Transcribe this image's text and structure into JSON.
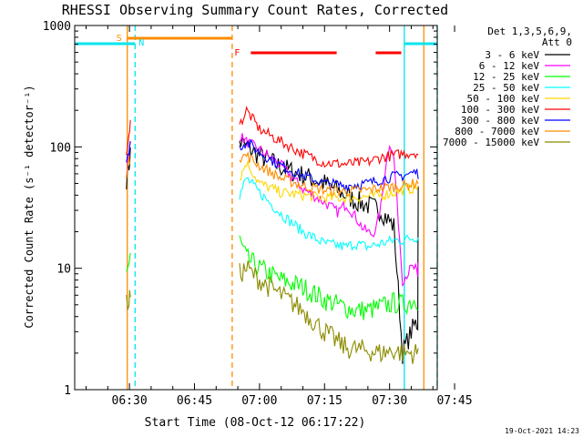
{
  "chart_data": {
    "type": "line",
    "title": "RHESSI Observing Summary Count Rates, Corrected",
    "xlabel": "Start Time (08-Oct-12 06:17:22)",
    "ylabel": "Corrected Count Rate (s⁻¹ detector⁻¹)",
    "x_ticks": [
      "06:30",
      "06:45",
      "07:00",
      "07:15",
      "07:30",
      "07:45"
    ],
    "x_tick_minutes": [
      30,
      45,
      60,
      75,
      90,
      105
    ],
    "xlim_minutes_after_0600": [
      17.37,
      101.0
    ],
    "y_scale": "log",
    "ylim": [
      1,
      1000
    ],
    "y_ticks": [
      "1",
      "10",
      "100",
      "1000"
    ],
    "y_tick_values": [
      1,
      10,
      100,
      1000
    ],
    "legend_title": [
      "Det 1,3,5,6,9,",
      "Att 0"
    ],
    "legend_position": "right",
    "timestamp": "19-Oct-2021 14:23",
    "flags": [
      {
        "label": "S",
        "color": "#ff8c00",
        "start": 29.5,
        "end": 53.7
      },
      {
        "label": "N",
        "color": "#00e5ee",
        "start": 17.4,
        "end": 31.3
      },
      {
        "label": "N",
        "color": "#00e5ee",
        "start": 93.4,
        "end": 101.0
      },
      {
        "label": "F",
        "color": "#ff0000",
        "start": 58.0,
        "end": 77.8
      },
      {
        "label": "F",
        "color": "#ff0000",
        "start": 86.8,
        "end": 92.7
      }
    ],
    "vlines": [
      {
        "t": 29.5,
        "color": "#ff8c00",
        "style": "solid"
      },
      {
        "t": 31.3,
        "color": "#00e5ee",
        "style": "dashed"
      },
      {
        "t": 53.7,
        "color": "#ff8c00",
        "style": "dashed"
      },
      {
        "t": 93.4,
        "color": "#00e5ee",
        "style": "solid"
      },
      {
        "t": 97.9,
        "color": "#ff8c00",
        "style": "solid"
      },
      {
        "t": 101.0,
        "color": "#00e5ee",
        "style": "dashed"
      }
    ],
    "series": [
      {
        "name": "3 - 6 keV",
        "color": "#000000",
        "points": [
          [
            29.3,
            55
          ],
          [
            29.9,
            70
          ],
          [
            30.2,
            90
          ],
          [
            55.4,
            110
          ],
          [
            57,
            100
          ],
          [
            60,
            85
          ],
          [
            65,
            68
          ],
          [
            70,
            58
          ],
          [
            75,
            50
          ],
          [
            80,
            40
          ],
          [
            82,
            36
          ],
          [
            85,
            33
          ],
          [
            88,
            30
          ],
          [
            91,
            22
          ],
          [
            93,
            2
          ],
          [
            95,
            3
          ],
          [
            96,
            3.5
          ],
          [
            96.5,
            3.5
          ],
          [
            96.6,
            46
          ]
        ]
      },
      {
        "name": "6 - 12 keV",
        "color": "#ff00ff",
        "points": [
          [
            29.3,
            60
          ],
          [
            29.9,
            85
          ],
          [
            30.2,
            110
          ],
          [
            55.4,
            125
          ],
          [
            57,
            110
          ],
          [
            60,
            95
          ],
          [
            65,
            70
          ],
          [
            70,
            45
          ],
          [
            75,
            35
          ],
          [
            78,
            29
          ],
          [
            80,
            34
          ],
          [
            82,
            27
          ],
          [
            84,
            21
          ],
          [
            86,
            19
          ],
          [
            87,
            22
          ],
          [
            88,
            32
          ],
          [
            89,
            65
          ],
          [
            90,
            110
          ],
          [
            91,
            80
          ],
          [
            93,
            8
          ],
          [
            95,
            10
          ],
          [
            96,
            10
          ],
          [
            96.5,
            8
          ],
          [
            96.6,
            11
          ]
        ]
      },
      {
        "name": "12 - 25 keV",
        "color": "#00ff00",
        "points": [
          [
            29.3,
            10
          ],
          [
            29.9,
            11
          ],
          [
            30.2,
            13
          ],
          [
            55.4,
            17
          ],
          [
            57,
            12
          ],
          [
            60,
            10
          ],
          [
            65,
            8
          ],
          [
            70,
            7
          ],
          [
            75,
            5.5
          ],
          [
            78,
            5
          ],
          [
            82,
            4.5
          ],
          [
            85,
            4.5
          ],
          [
            88,
            4.8
          ],
          [
            91,
            5.2
          ],
          [
            93,
            5
          ],
          [
            96,
            5.5
          ],
          [
            96.6,
            5.5
          ]
        ]
      },
      {
        "name": "25 - 50 keV",
        "color": "#00ffff",
        "points": [
          [
            55.4,
            40
          ],
          [
            57,
            55
          ],
          [
            60,
            42
          ],
          [
            65,
            28
          ],
          [
            70,
            20
          ],
          [
            75,
            16
          ],
          [
            80,
            15
          ],
          [
            82,
            16
          ],
          [
            85,
            15
          ],
          [
            88,
            16
          ],
          [
            91,
            17
          ],
          [
            93,
            17
          ],
          [
            96,
            18
          ],
          [
            96.6,
            18
          ]
        ]
      },
      {
        "name": "50 - 100 keV",
        "color": "#ffd700",
        "points": [
          [
            55.4,
            55
          ],
          [
            57,
            75
          ],
          [
            60,
            50
          ],
          [
            65,
            42
          ],
          [
            70,
            40
          ],
          [
            75,
            38
          ],
          [
            80,
            38
          ],
          [
            85,
            39
          ],
          [
            88,
            40
          ],
          [
            91,
            42
          ],
          [
            93,
            44
          ],
          [
            96,
            46
          ],
          [
            96.6,
            48
          ]
        ]
      },
      {
        "name": "100 - 300 keV",
        "color": "#ff0000",
        "points": [
          [
            29.3,
            80
          ],
          [
            29.9,
            120
          ],
          [
            30.2,
            180
          ],
          [
            55.4,
            150
          ],
          [
            57,
            200
          ],
          [
            60,
            140
          ],
          [
            65,
            110
          ],
          [
            70,
            88
          ],
          [
            75,
            74
          ],
          [
            80,
            72
          ],
          [
            85,
            75
          ],
          [
            88,
            82
          ],
          [
            91,
            85
          ],
          [
            93,
            88
          ],
          [
            96,
            90
          ],
          [
            96.6,
            88
          ]
        ]
      },
      {
        "name": "300 - 800 keV",
        "color": "#0000ff",
        "points": [
          [
            29.3,
            70
          ],
          [
            29.9,
            95
          ],
          [
            30.2,
            110
          ],
          [
            55.4,
            100
          ],
          [
            57,
            110
          ],
          [
            60,
            90
          ],
          [
            65,
            70
          ],
          [
            70,
            58
          ],
          [
            75,
            50
          ],
          [
            80,
            48
          ],
          [
            85,
            50
          ],
          [
            88,
            54
          ],
          [
            91,
            57
          ],
          [
            93,
            58
          ],
          [
            96,
            62
          ],
          [
            96.6,
            60
          ]
        ]
      },
      {
        "name": "800 - 7000 keV",
        "color": "#ff8c00",
        "points": [
          [
            29.3,
            60
          ],
          [
            29.9,
            75
          ],
          [
            30.2,
            80
          ],
          [
            55.4,
            82
          ],
          [
            57,
            85
          ],
          [
            60,
            70
          ],
          [
            65,
            55
          ],
          [
            70,
            48
          ],
          [
            75,
            44
          ],
          [
            80,
            43
          ],
          [
            85,
            44
          ],
          [
            88,
            46
          ],
          [
            91,
            47
          ],
          [
            93,
            48
          ],
          [
            96,
            50
          ],
          [
            96.6,
            52
          ]
        ]
      },
      {
        "name": "7000 - 15000 keV",
        "color": "#8b8b00",
        "points": [
          [
            29.3,
            5
          ],
          [
            29.9,
            5.5
          ],
          [
            30.2,
            6
          ],
          [
            55.4,
            9
          ],
          [
            57,
            10
          ],
          [
            60,
            8
          ],
          [
            65,
            6
          ],
          [
            70,
            4.5
          ],
          [
            75,
            3
          ],
          [
            80,
            2.2
          ],
          [
            85,
            2.1
          ],
          [
            88,
            2
          ],
          [
            91,
            2.1
          ],
          [
            93,
            2
          ],
          [
            96,
            2
          ],
          [
            96.6,
            2
          ]
        ]
      }
    ]
  }
}
